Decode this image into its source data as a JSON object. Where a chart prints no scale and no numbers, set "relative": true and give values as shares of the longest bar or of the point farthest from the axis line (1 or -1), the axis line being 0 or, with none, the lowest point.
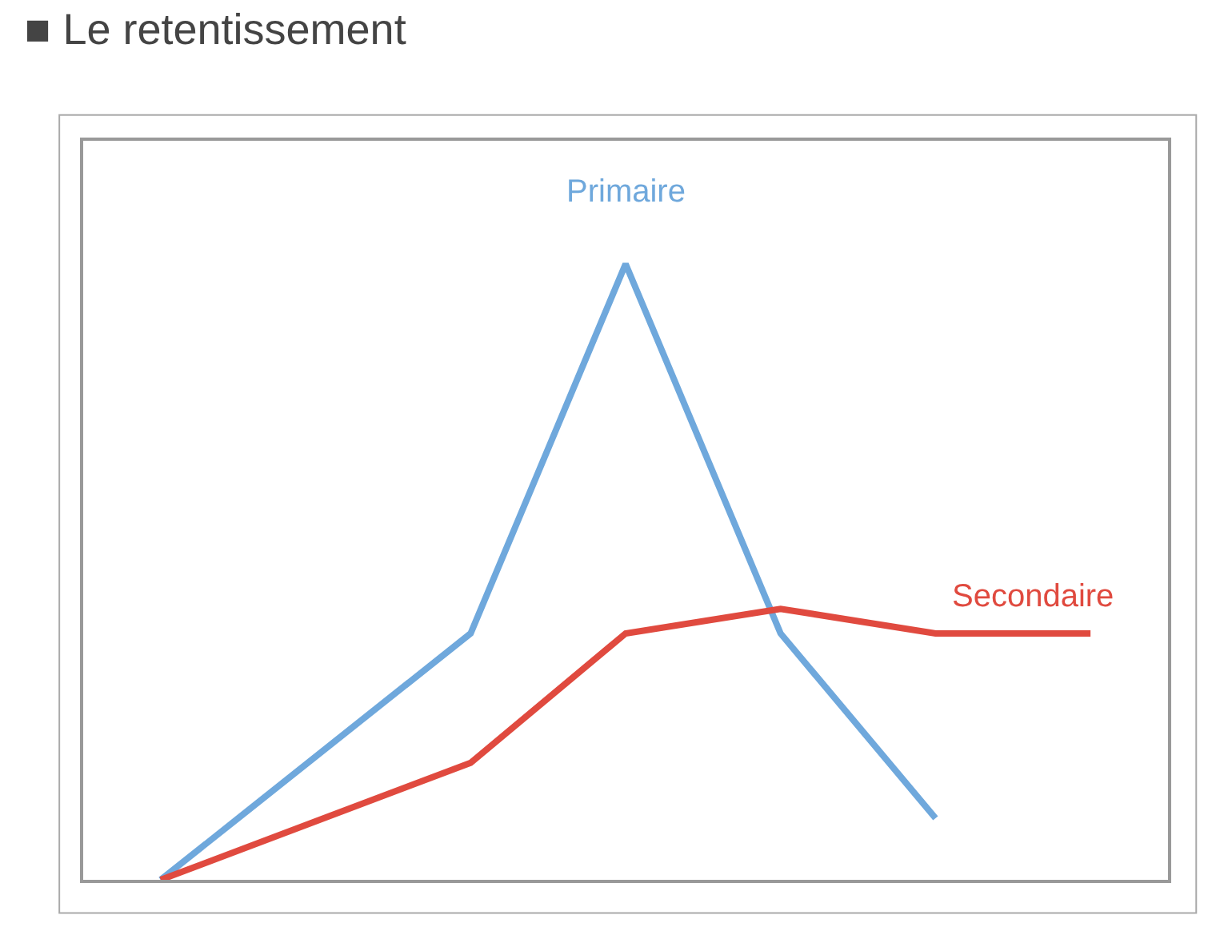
{
  "chart_data": {
    "type": "line",
    "title": "■ Le retentissement",
    "relative": true,
    "legend": false,
    "marker": "none",
    "line_style": "solid",
    "categories": [
      null,
      null,
      null,
      null,
      null,
      null,
      null
    ],
    "series": [
      {
        "name": "Primaire",
        "color": "#6fa8dc",
        "values": [
          0,
          null,
          0.4,
          1,
          0.4,
          0.1,
          null
        ]
      },
      {
        "name": "Secondaire",
        "color": "#e04a3f",
        "values": [
          0,
          null,
          0.19,
          0.4,
          0.44,
          0.4,
          0.4
        ]
      }
    ]
  }
}
